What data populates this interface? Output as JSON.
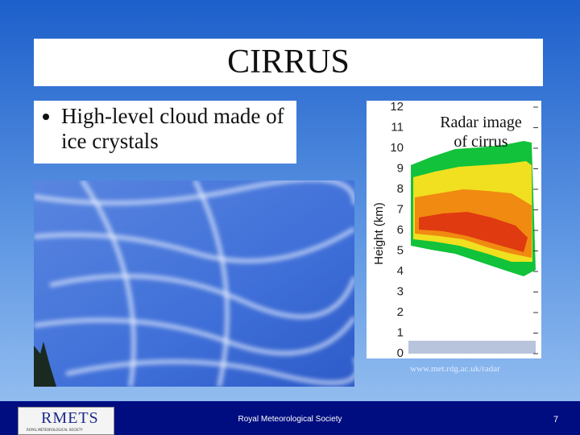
{
  "header": {
    "title": "CIRRUS"
  },
  "bullets": [
    "High-level cloud made of ice crystals"
  ],
  "radar": {
    "caption": "Radar image of cirrus",
    "axis_label": "Height (km)",
    "ticks": [
      0,
      1,
      2,
      3,
      4,
      5,
      6,
      7,
      8,
      9,
      10,
      11,
      12
    ],
    "source": "www.met.rdg.ac.uk/radar"
  },
  "footer": {
    "logo": "RMETS",
    "logo_subtitle": "ROYAL METEOROLOGICAL SOCIETY",
    "organization": "Royal Meteorological Society",
    "page": 7
  }
}
